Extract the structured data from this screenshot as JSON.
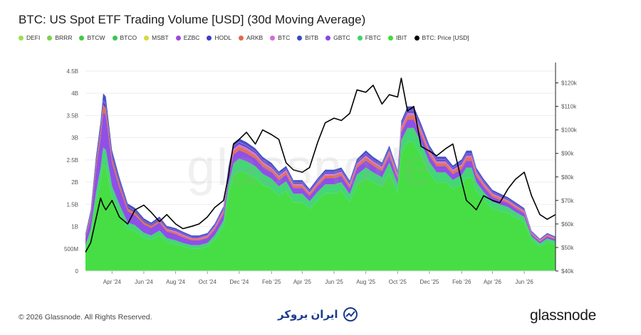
{
  "title": "BTC: US Spot ETF Trading Volume [USD] (30d Moving Average)",
  "legend": [
    {
      "label": "DEFI",
      "color": "#9be04a"
    },
    {
      "label": "BRRR",
      "color": "#7bd14a"
    },
    {
      "label": "BTCW",
      "color": "#45c93f"
    },
    {
      "label": "BTCO",
      "color": "#36c850"
    },
    {
      "label": "MSBT",
      "color": "#d6d83e"
    },
    {
      "label": "EZBC",
      "color": "#9b4bd8"
    },
    {
      "label": "HODL",
      "color": "#3b3fc6"
    },
    {
      "label": "ARKB",
      "color": "#e06a4a"
    },
    {
      "label": "BTC",
      "color": "#d46bd8"
    },
    {
      "label": "BITB",
      "color": "#3a49c4"
    },
    {
      "label": "GBTC",
      "color": "#8a46e6"
    },
    {
      "label": "FBTC",
      "color": "#3bd46f"
    },
    {
      "label": "IBIT",
      "color": "#3ddc3b"
    },
    {
      "label": "BTC: Price [USD]",
      "color": "#000000"
    }
  ],
  "footer": {
    "copyright": "© 2026 Glassnode. All Rights Reserved.",
    "center_brand": "ایران بروکر",
    "right_brand": "glassnode",
    "watermark": "glassnode"
  },
  "chart_data": {
    "type": "area",
    "x_ticks": [
      "Apr '24",
      "Jun '24",
      "Aug '24",
      "Oct '24",
      "Dec '24",
      "Feb '25",
      "Apr '25",
      "Jun '25",
      "Aug '25",
      "Oct '25",
      "Dec '25",
      "Feb '26",
      "Apr '26",
      "Jun '26"
    ],
    "y_left_ticks": [
      "0",
      "500M",
      "1B",
      "1.5B",
      "2B",
      "2.5B",
      "3B",
      "3.5B",
      "4B",
      "4.5B"
    ],
    "y_left_range": [
      0,
      4500000000
    ],
    "y_right_ticks": [
      "$40k",
      "$50k",
      "$60k",
      "$70k",
      "$80k",
      "$90k",
      "$100k",
      "$110k",
      "$120k"
    ],
    "y_right_range": [
      40000,
      125000
    ],
    "grid": true,
    "legend_position": "top",
    "x_start": "2024-02-10",
    "x_end": "2026-07-31",
    "x": [
      "2024-02-10",
      "2024-02-20",
      "2024-03-01",
      "2024-03-10",
      "2024-03-15",
      "2024-03-20",
      "2024-04-01",
      "2024-04-15",
      "2024-05-01",
      "2024-05-15",
      "2024-06-01",
      "2024-06-15",
      "2024-07-01",
      "2024-07-15",
      "2024-08-01",
      "2024-08-15",
      "2024-09-01",
      "2024-09-15",
      "2024-10-01",
      "2024-10-15",
      "2024-11-01",
      "2024-11-10",
      "2024-11-20",
      "2024-12-01",
      "2024-12-15",
      "2025-01-01",
      "2025-01-15",
      "2025-02-01",
      "2025-02-15",
      "2025-03-01",
      "2025-03-15",
      "2025-04-01",
      "2025-04-15",
      "2025-05-01",
      "2025-05-15",
      "2025-06-01",
      "2025-06-15",
      "2025-07-01",
      "2025-07-15",
      "2025-08-01",
      "2025-08-15",
      "2025-09-01",
      "2025-09-15",
      "2025-10-01",
      "2025-10-08",
      "2025-10-20",
      "2025-11-01",
      "2025-11-15",
      "2025-12-01",
      "2025-12-15",
      "2026-01-01",
      "2026-01-15",
      "2026-02-01",
      "2026-02-10",
      "2026-02-20",
      "2026-03-01",
      "2026-03-15",
      "2026-04-01",
      "2026-04-15",
      "2026-05-01",
      "2026-05-15",
      "2026-06-01",
      "2026-06-15",
      "2026-07-01",
      "2026-07-15",
      "2026-07-31"
    ],
    "series": [
      {
        "name": "IBIT",
        "values": [
          500,
          800,
          1500,
          2000,
          2400,
          2350,
          1650,
          1300,
          950,
          900,
          750,
          700,
          800,
          650,
          600,
          550,
          500,
          500,
          550,
          700,
          1000,
          1700,
          2150,
          2250,
          2200,
          2100,
          1950,
          1850,
          1700,
          1800,
          1550,
          1550,
          1400,
          1600,
          1750,
          1750,
          1800,
          1550,
          1950,
          2100,
          2000,
          1900,
          2200,
          1750,
          2650,
          2900,
          2900,
          2600,
          2200,
          2000,
          2000,
          1850,
          1950,
          2100,
          2100,
          1800,
          1600,
          1400,
          1350,
          1300,
          1200,
          1100,
          700,
          550,
          650,
          600
        ]
      },
      {
        "name": "FBTC",
        "values": [
          80,
          130,
          250,
          320,
          380,
          380,
          260,
          200,
          140,
          130,
          110,
          100,
          110,
          90,
          90,
          80,
          80,
          80,
          80,
          100,
          140,
          220,
          270,
          280,
          270,
          260,
          240,
          230,
          210,
          220,
          190,
          190,
          170,
          190,
          200,
          200,
          200,
          180,
          220,
          230,
          220,
          210,
          240,
          200,
          290,
          320,
          320,
          290,
          250,
          220,
          220,
          200,
          210,
          230,
          230,
          200,
          180,
          160,
          150,
          140,
          130,
          120,
          80,
          70,
          80,
          70
        ]
      },
      {
        "name": "GBTC",
        "values": [
          150,
          260,
          520,
          680,
          800,
          780,
          520,
          380,
          260,
          230,
          190,
          170,
          180,
          150,
          140,
          130,
          110,
          110,
          110,
          130,
          150,
          180,
          200,
          190,
          180,
          170,
          160,
          150,
          140,
          150,
          130,
          130,
          120,
          130,
          140,
          140,
          140,
          130,
          150,
          160,
          150,
          140,
          160,
          130,
          180,
          190,
          190,
          170,
          150,
          140,
          140,
          130,
          140,
          150,
          150,
          130,
          120,
          110,
          100,
          90,
          90,
          80,
          50,
          40,
          50,
          40
        ]
      },
      {
        "name": "ARKB",
        "values": [
          40,
          70,
          110,
          140,
          160,
          160,
          110,
          90,
          60,
          60,
          50,
          45,
          50,
          40,
          40,
          35,
          30,
          30,
          35,
          40,
          50,
          70,
          85,
          85,
          80,
          75,
          70,
          65,
          60,
          65,
          55,
          55,
          50,
          55,
          60,
          60,
          60,
          55,
          65,
          70,
          65,
          60,
          70,
          55,
          85,
          95,
          95,
          85,
          75,
          70,
          70,
          65,
          70,
          75,
          75,
          65,
          55,
          50,
          45,
          40,
          40,
          35,
          25,
          20,
          25,
          20
        ]
      },
      {
        "name": "BTC",
        "values": [
          0,
          0,
          0,
          0,
          0,
          0,
          0,
          0,
          0,
          0,
          0,
          0,
          0,
          20,
          30,
          30,
          25,
          25,
          25,
          30,
          35,
          45,
          50,
          50,
          50,
          45,
          45,
          40,
          40,
          40,
          35,
          35,
          30,
          35,
          40,
          40,
          40,
          35,
          40,
          45,
          40,
          40,
          45,
          40,
          50,
          55,
          55,
          50,
          45,
          40,
          40,
          40,
          40,
          45,
          45,
          40,
          35,
          30,
          30,
          25,
          25,
          25,
          15,
          15,
          15,
          15
        ]
      },
      {
        "name": "HODL",
        "values": [
          20,
          30,
          50,
          60,
          70,
          70,
          50,
          40,
          30,
          30,
          25,
          20,
          25,
          20,
          20,
          20,
          15,
          15,
          15,
          20,
          25,
          30,
          35,
          35,
          35,
          30,
          30,
          30,
          25,
          25,
          25,
          25,
          20,
          25,
          25,
          25,
          25,
          25,
          25,
          30,
          25,
          25,
          30,
          25,
          35,
          40,
          40,
          35,
          30,
          30,
          30,
          25,
          30,
          30,
          30,
          25,
          25,
          20,
          20,
          20,
          20,
          15,
          10,
          10,
          10,
          10
        ]
      },
      {
        "name": "EZBC",
        "values": [
          10,
          20,
          30,
          40,
          40,
          40,
          30,
          25,
          20,
          15,
          15,
          15,
          15,
          10,
          10,
          10,
          10,
          10,
          10,
          10,
          15,
          20,
          20,
          20,
          20,
          20,
          20,
          15,
          15,
          15,
          15,
          15,
          15,
          15,
          15,
          15,
          15,
          15,
          15,
          20,
          15,
          15,
          20,
          15,
          20,
          25,
          25,
          20,
          20,
          20,
          20,
          15,
          20,
          20,
          20,
          15,
          15,
          15,
          10,
          10,
          10,
          10,
          5,
          5,
          5,
          5
        ]
      },
      {
        "name": "BITB",
        "values": [
          40,
          60,
          100,
          130,
          150,
          150,
          100,
          80,
          60,
          55,
          45,
          40,
          45,
          35,
          35,
          30,
          30,
          30,
          30,
          35,
          45,
          60,
          70,
          70,
          65,
          60,
          55,
          55,
          50,
          50,
          45,
          45,
          40,
          45,
          50,
          50,
          50,
          45,
          55,
          60,
          55,
          50,
          60,
          50,
          70,
          80,
          80,
          70,
          60,
          55,
          55,
          50,
          55,
          60,
          60,
          50,
          45,
          40,
          40,
          35,
          35,
          30,
          20,
          15,
          20,
          15
        ]
      },
      {
        "name": "Price",
        "values": [
          48000,
          52000,
          62000,
          71000,
          68000,
          66000,
          70000,
          63000,
          60000,
          66000,
          68000,
          65000,
          61000,
          64000,
          60000,
          58000,
          59000,
          60000,
          63000,
          67000,
          70000,
          80000,
          94000,
          96000,
          99000,
          94000,
          100000,
          98000,
          96000,
          86000,
          83000,
          82000,
          84000,
          95000,
          103000,
          105000,
          104000,
          107000,
          117000,
          116000,
          119000,
          111000,
          115000,
          114000,
          122000,
          108000,
          110000,
          93000,
          91000,
          89000,
          92000,
          94000,
          78000,
          70000,
          68000,
          66000,
          72000,
          70000,
          69000,
          75000,
          79000,
          82000,
          72000,
          64000,
          62000,
          64000
        ]
      }
    ]
  }
}
